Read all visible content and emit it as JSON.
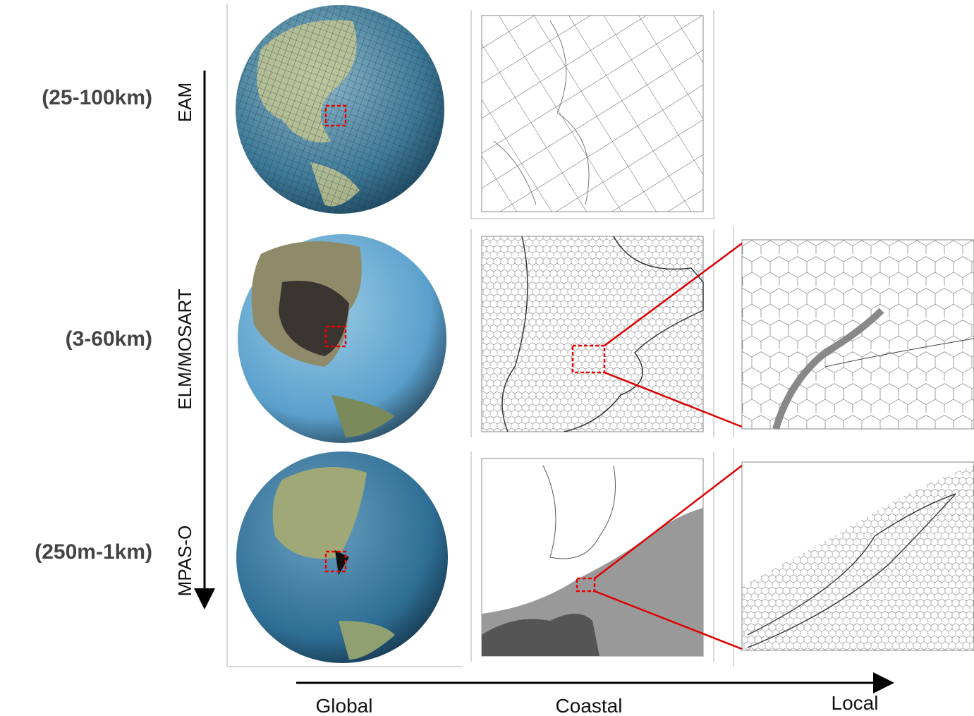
{
  "row_labels": [
    "(25-100km)",
    "(3-60km)",
    "(250m-1km)"
  ],
  "model_labels": [
    "EAM",
    "ELM/MOSART",
    "MPAS-O"
  ],
  "scale_labels": [
    "Global",
    "Coastal",
    "Local"
  ]
}
